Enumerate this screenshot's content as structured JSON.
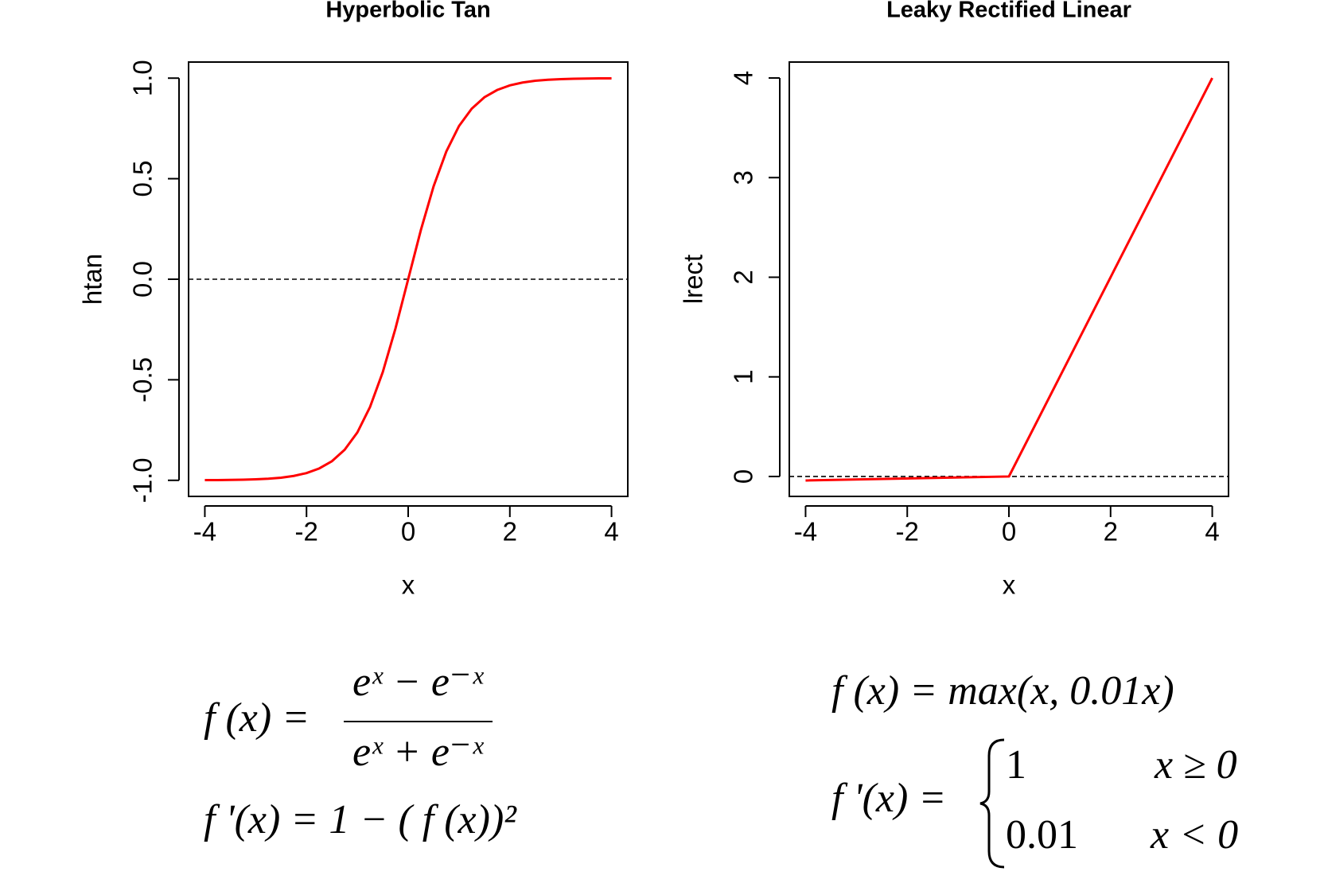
{
  "chart_data": [
    {
      "type": "line",
      "title": "Hyperbolic Tan",
      "x_label": "x",
      "y_label": "htan",
      "x": [
        -4,
        -3.75,
        -3.5,
        -3.25,
        -3,
        -2.75,
        -2.5,
        -2.25,
        -2,
        -1.75,
        -1.5,
        -1.25,
        -1,
        -0.75,
        -0.5,
        -0.25,
        0,
        0.25,
        0.5,
        0.75,
        1,
        1.25,
        1.5,
        1.75,
        2,
        2.25,
        2.5,
        2.75,
        3,
        3.25,
        3.5,
        3.75,
        4
      ],
      "series": [
        {
          "name": "htan",
          "color": "#ff0000",
          "values": [
            -0.999,
            -0.999,
            -0.998,
            -0.997,
            -0.995,
            -0.992,
            -0.987,
            -0.978,
            -0.964,
            -0.941,
            -0.905,
            -0.848,
            -0.762,
            -0.635,
            -0.462,
            -0.245,
            0,
            0.245,
            0.462,
            0.635,
            0.762,
            0.848,
            0.905,
            0.941,
            0.964,
            0.978,
            0.987,
            0.992,
            0.995,
            0.997,
            0.998,
            0.999,
            0.999
          ]
        }
      ],
      "xlim": [
        -4.32,
        4.32
      ],
      "ylim": [
        -1.08,
        1.08
      ],
      "xticks": [
        -4,
        -2,
        0,
        2,
        4
      ],
      "yticks": [
        {
          "value": -1,
          "label": "-1.0"
        },
        {
          "value": -0.5,
          "label": "-0.5"
        },
        {
          "value": 0,
          "label": "0.0"
        },
        {
          "value": 0.5,
          "label": "0.5"
        },
        {
          "value": 1,
          "label": "1.0"
        }
      ],
      "hline": 0
    },
    {
      "type": "line",
      "title": "Leaky Rectified Linear",
      "x_label": "x",
      "y_label": "lrect",
      "x": [
        -4,
        0,
        4
      ],
      "series": [
        {
          "name": "lrect",
          "color": "#ff0000",
          "values": [
            -0.04,
            0,
            4
          ]
        }
      ],
      "xlim": [
        -4.32,
        4.32
      ],
      "ylim": [
        -0.2,
        4.16
      ],
      "xticks": [
        -4,
        -2,
        0,
        2,
        4
      ],
      "yticks": [
        0,
        1,
        2,
        3,
        4
      ],
      "hline": 0
    }
  ],
  "equations": {
    "tanh": {
      "lhs": "f (x) =",
      "numerator": "eˣ − e⁻ˣ",
      "denominator": "eˣ + e⁻ˣ",
      "derivative": "f '(x) = 1 − ( f (x))²"
    },
    "leaky": {
      "function": "f (x) = max(x, 0.01x)",
      "derivative_lhs": "f '(x) =",
      "cases": [
        [
          "1",
          "x ≥ 0"
        ],
        [
          "0.01",
          "x < 0"
        ]
      ]
    }
  }
}
